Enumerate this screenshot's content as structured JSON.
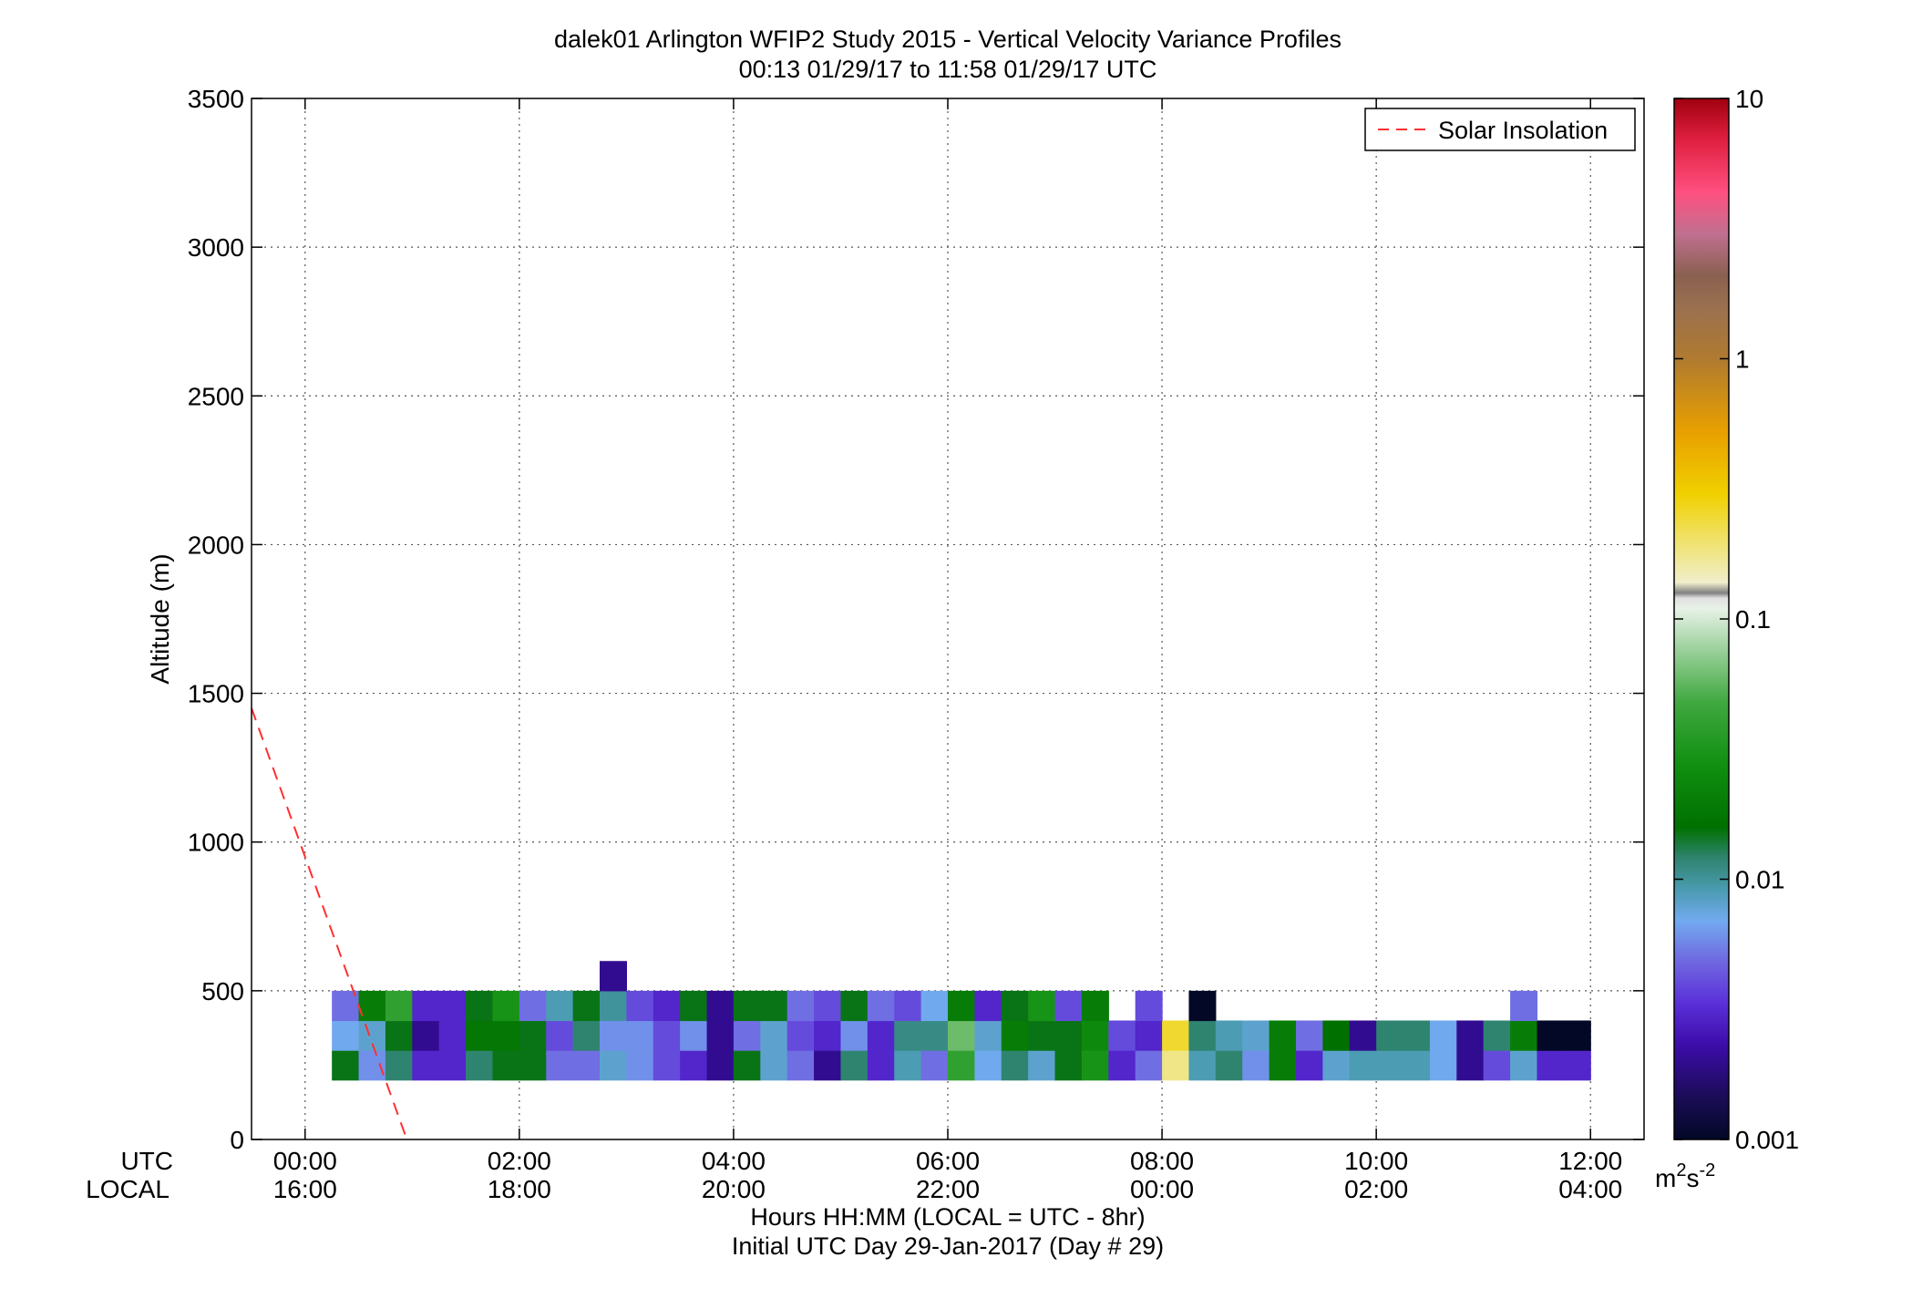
{
  "chart_data": {
    "type": "heatmap",
    "title": "dalek01 Arlington WFIP2 Study 2015 - Vertical Velocity Variance Profiles",
    "subtitle": "00:13 01/29/17 to 11:58 01/29/17  UTC",
    "ylabel": "Altitude (m)",
    "xlabel": "Hours HH:MM  (LOCAL = UTC - 8hr)",
    "xlabel2": "Initial UTC Day 29-Jan-2017 (Day # 29)",
    "row_label_utc": "UTC",
    "row_label_local": "LOCAL",
    "ylim": [
      0,
      3500
    ],
    "yticks": [
      0,
      500,
      1000,
      1500,
      2000,
      2500,
      3000,
      3500
    ],
    "xlim_hours": [
      -0.5,
      12.5
    ],
    "xticks": [
      {
        "hour": 0,
        "utc": "00:00",
        "local": "16:00"
      },
      {
        "hour": 2,
        "utc": "02:00",
        "local": "18:00"
      },
      {
        "hour": 4,
        "utc": "04:00",
        "local": "20:00"
      },
      {
        "hour": 6,
        "utc": "06:00",
        "local": "22:00"
      },
      {
        "hour": 8,
        "utc": "08:00",
        "local": "00:00"
      },
      {
        "hour": 10,
        "utc": "10:00",
        "local": "02:00"
      },
      {
        "hour": 12,
        "utc": "12:00",
        "local": "04:00"
      }
    ],
    "grid": true,
    "legend": {
      "placement": "top-right",
      "entries": [
        {
          "label": "Solar Insolation",
          "style": "dashed",
          "color": "#ff3030"
        }
      ]
    },
    "solar_insolation": {
      "x": [
        -0.5,
        0.95
      ],
      "y": [
        1450,
        0
      ]
    },
    "colorbar": {
      "scale": "log",
      "range": [
        0.001,
        10
      ],
      "ticks": [
        {
          "value": 0.001,
          "label": "0.001"
        },
        {
          "value": 0.01,
          "label": "0.01"
        },
        {
          "value": 0.1,
          "label": "0.1"
        },
        {
          "value": 1,
          "label": "1"
        },
        {
          "value": 10,
          "label": "10"
        }
      ],
      "unit_base": "m",
      "unit_sup1": "2",
      "unit_mid": "s",
      "unit_sup2": "-2",
      "stops": [
        {
          "f": 0.0,
          "c": "#020826"
        },
        {
          "f": 0.04,
          "c": "#1a0c55"
        },
        {
          "f": 0.09,
          "c": "#3c0ca8"
        },
        {
          "f": 0.13,
          "c": "#5a2fd8"
        },
        {
          "f": 0.17,
          "c": "#6f66e0"
        },
        {
          "f": 0.21,
          "c": "#72aaf0"
        },
        {
          "f": 0.24,
          "c": "#4a9bb0"
        },
        {
          "f": 0.27,
          "c": "#2f8470"
        },
        {
          "f": 0.3,
          "c": "#007000"
        },
        {
          "f": 0.36,
          "c": "#109010"
        },
        {
          "f": 0.42,
          "c": "#40a840"
        },
        {
          "f": 0.47,
          "c": "#9ad09a"
        },
        {
          "f": 0.51,
          "c": "#e8f2e8"
        },
        {
          "f": 0.52,
          "c": "#e0e0e0"
        },
        {
          "f": 0.525,
          "c": "#808080"
        },
        {
          "f": 0.535,
          "c": "#f0eecc"
        },
        {
          "f": 0.58,
          "c": "#f0e060"
        },
        {
          "f": 0.62,
          "c": "#f0d000"
        },
        {
          "f": 0.68,
          "c": "#e8a000"
        },
        {
          "f": 0.75,
          "c": "#b07a30"
        },
        {
          "f": 0.8,
          "c": "#9a7050"
        },
        {
          "f": 0.83,
          "c": "#8a6050"
        },
        {
          "f": 0.87,
          "c": "#c07090"
        },
        {
          "f": 0.91,
          "c": "#ff5080"
        },
        {
          "f": 0.96,
          "c": "#e02040"
        },
        {
          "f": 1.0,
          "c": "#a00010"
        }
      ]
    },
    "cell_width_hours": 0.25,
    "cell_height_m": 100,
    "row_bottoms_m": [
      200,
      300,
      400
    ],
    "series": [
      {
        "name": "200-300 m",
        "values": [
          0.015,
          0.006,
          0.012,
          0.003,
          0.003,
          0.012,
          0.015,
          0.015,
          0.005,
          0.005,
          0.008,
          0.006,
          0.004,
          0.003,
          0.002,
          0.015,
          0.008,
          0.005,
          0.002,
          0.012,
          0.003,
          0.009,
          0.005,
          0.04,
          0.007,
          0.012,
          0.008,
          0.015,
          0.03,
          0.003,
          0.005,
          0.18,
          0.009,
          0.012,
          0.006,
          0.02,
          0.003,
          0.008,
          0.009,
          0.009,
          0.009,
          0.007,
          0.002,
          0.004,
          0.008,
          0.003,
          0.003
        ]
      },
      {
        "name": "300-400 m",
        "values": [
          0.007,
          0.008,
          0.015,
          0.002,
          0.003,
          0.018,
          0.018,
          0.015,
          0.004,
          0.012,
          0.006,
          0.006,
          0.004,
          0.006,
          0.002,
          0.005,
          0.008,
          0.004,
          0.003,
          0.006,
          0.003,
          0.011,
          0.011,
          0.06,
          0.008,
          0.02,
          0.015,
          0.015,
          0.025,
          0.004,
          0.003,
          0.25,
          0.012,
          0.009,
          0.008,
          0.02,
          0.005,
          0.016,
          0.002,
          0.012,
          0.012,
          0.007,
          0.002,
          0.012,
          0.02,
          0.001,
          0.001
        ]
      },
      {
        "name": "400-500 m",
        "values": [
          0.005,
          0.02,
          0.04,
          0.003,
          0.003,
          0.015,
          0.03,
          0.005,
          0.009,
          0.015,
          0.01,
          0.004,
          0.003,
          0.015,
          0.002,
          0.015,
          0.015,
          0.005,
          0.004,
          0.015,
          0.005,
          0.004,
          0.007,
          0.02,
          0.003,
          0.015,
          0.03,
          0.004,
          0.02,
          null,
          0.004,
          null,
          0.001,
          null,
          null,
          null,
          null,
          null,
          null,
          null,
          null,
          null,
          null,
          null,
          0.005,
          null,
          null
        ]
      }
    ],
    "extra_cells": [
      {
        "x_index": 10,
        "bottom_m": 500,
        "value": 0.002
      }
    ]
  }
}
